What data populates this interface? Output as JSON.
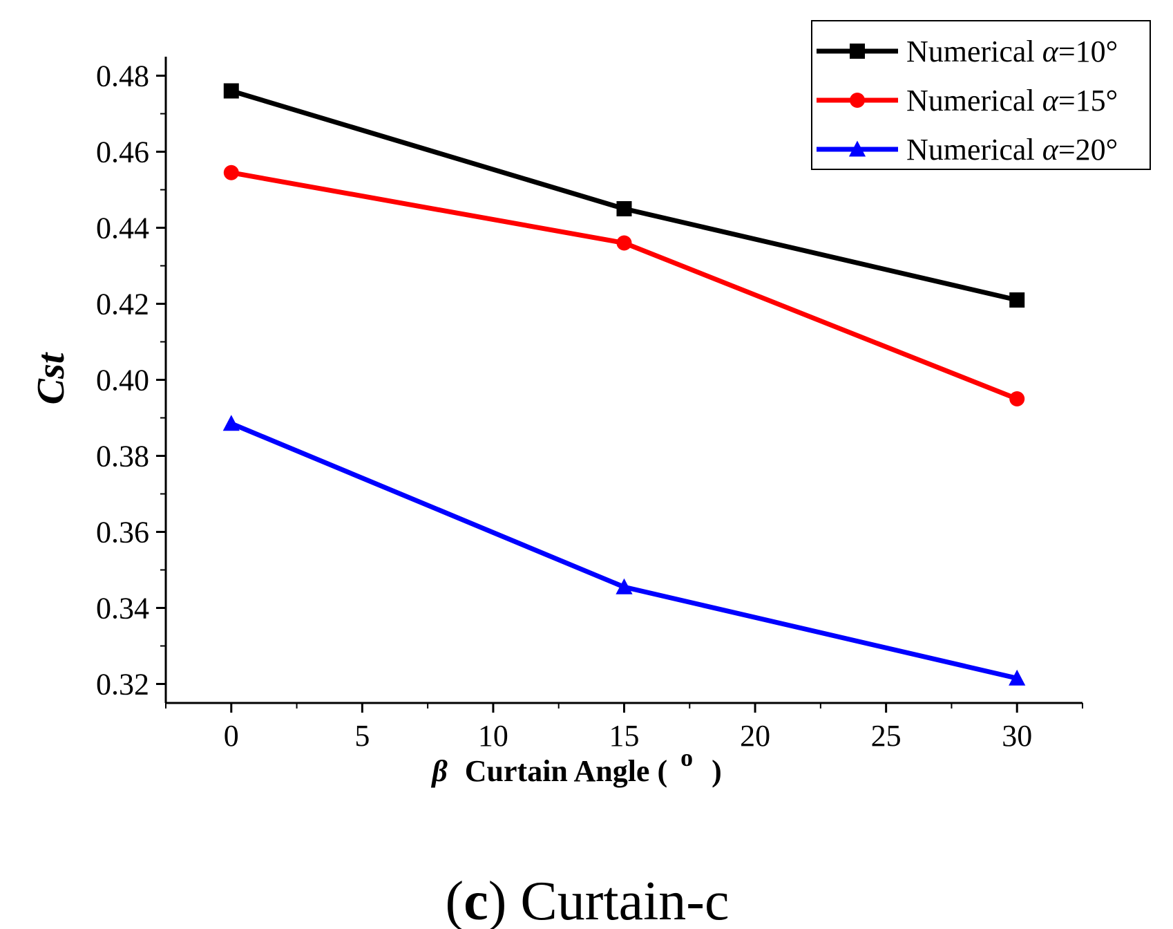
{
  "chart_data": {
    "type": "line",
    "title": "",
    "xlabel_symbol": "β",
    "xlabel": "Curtain Angle (",
    "xlabel_unit": "o",
    "xlabel_close": ")",
    "ylabel": "Cst",
    "x": [
      0,
      15,
      30
    ],
    "xlim": [
      -2.5,
      32.5
    ],
    "ylim": [
      0.315,
      0.485
    ],
    "xticks": [
      "0",
      "5",
      "10",
      "15",
      "20",
      "25",
      "30"
    ],
    "yticks": [
      "0.32",
      "0.34",
      "0.36",
      "0.38",
      "0.40",
      "0.42",
      "0.44",
      "0.46",
      "0.48"
    ],
    "legend_position": "top-right",
    "series": [
      {
        "name": "Numerical α=10°",
        "label_prefix": "Numerical ",
        "label_symbol": "α",
        "label_suffix": "=10°",
        "color": "#000000",
        "marker": "square",
        "values": [
          0.476,
          0.445,
          0.421
        ]
      },
      {
        "name": "Numerical α=15°",
        "label_prefix": "Numerical ",
        "label_symbol": "α",
        "label_suffix": "=15°",
        "color": "#ff0000",
        "marker": "circle",
        "values": [
          0.4545,
          0.436,
          0.395
        ]
      },
      {
        "name": "Numerical α=20°",
        "label_prefix": "Numerical ",
        "label_symbol": "α",
        "label_suffix": "=20°",
        "color": "#0000ff",
        "marker": "triangle",
        "values": [
          0.3885,
          0.3455,
          0.3215
        ]
      }
    ]
  },
  "caption": {
    "open": "(",
    "letter": "c",
    "rest": ") Curtain-c"
  }
}
